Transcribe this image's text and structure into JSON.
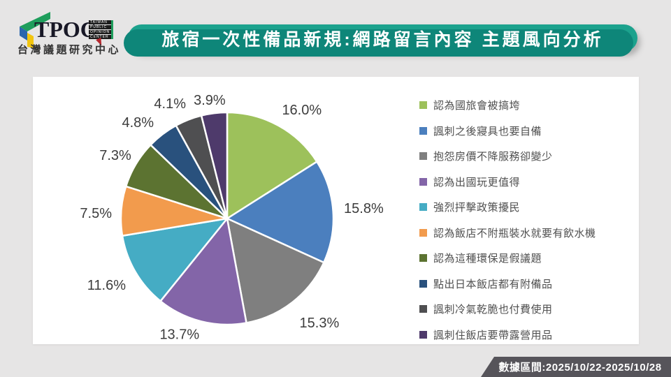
{
  "logo": {
    "acronym": "TPOC",
    "subtitle": "台灣議題研究中心",
    "mini_lines": [
      "TAIWAN",
      "PUBLIC",
      "OPINION",
      "CENTER"
    ],
    "mark_colors": {
      "green": "#1E9E5C",
      "blue": "#2B66AD",
      "yellow": "#F2C50F"
    },
    "accent_red": "#B5282E"
  },
  "header": {
    "title": "旅宿一次性備品新規:網路留言內容 主題風向分析",
    "banner_color": "#1CA28D",
    "banner_shadow_color": "#0E8679"
  },
  "chart_data": {
    "type": "pie",
    "title": "旅宿一次性備品新規:網路留言內容 主題風向分析",
    "categories": [
      "認為國旅會被搞垮",
      "諷刺之後寢具也要自備",
      "抱怨房價不降服務卻變少",
      "認為出國玩更值得",
      "強烈抨擊政策擾民",
      "認為飯店不附瓶裝水就要有飲水機",
      "認為這種環保是假議題",
      "點出日本飯店都有附備品",
      "諷刺冷氣乾脆也付費使用",
      "諷刺住飯店要帶露營用品"
    ],
    "values": [
      16.0,
      15.8,
      15.3,
      13.7,
      11.6,
      7.5,
      7.3,
      4.8,
      4.1,
      3.9
    ],
    "data_labels": [
      "16.0%",
      "15.8%",
      "15.3%",
      "13.7%",
      "11.6%",
      "7.5%",
      "7.3%",
      "4.8%",
      "4.1%",
      "3.9%"
    ],
    "colors": [
      "#9DC15B",
      "#4B7FBE",
      "#7F7F7F",
      "#8365A8",
      "#45ACC4",
      "#F29B4D",
      "#5C7331",
      "#29517D",
      "#4F4F51",
      "#4E3A6B"
    ],
    "legend_position": "right",
    "start_angle_deg": 0,
    "direction": "clockwise",
    "slice_border_color": "#FFFFFF"
  },
  "footer": {
    "data_range_label": "數據區間:2025/10/22-2025/10/28",
    "banner_color": "#56545A"
  }
}
